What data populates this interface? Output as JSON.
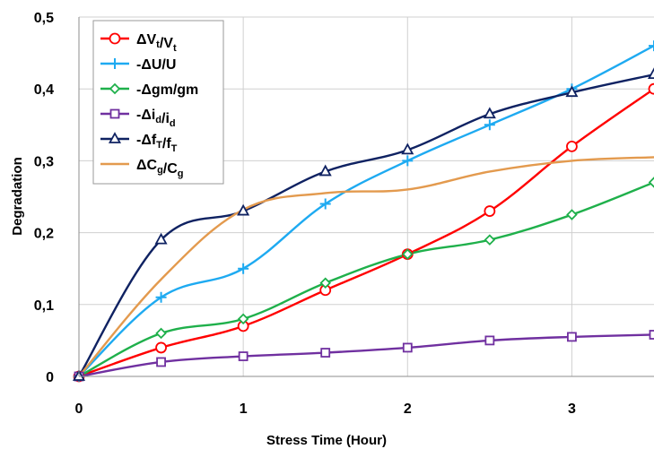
{
  "chart_data": {
    "type": "line",
    "xlabel": "Stress Time (Hour)",
    "ylabel": "Degradation",
    "xlim": [
      0,
      3.5
    ],
    "ylim": [
      0,
      0.5
    ],
    "x_ticks": [
      0,
      1,
      2,
      3
    ],
    "x_tick_labels": [
      "0",
      "1",
      "2",
      "3"
    ],
    "y_ticks": [
      0,
      0.1,
      0.2,
      0.3,
      0.4,
      0.5
    ],
    "y_tick_labels": [
      "0",
      "0,1",
      "0,2",
      "0,3",
      "0,4",
      "0,5"
    ],
    "grid": true,
    "legend_position": "top-left",
    "series": [
      {
        "name": "ΔVt/Vt",
        "legend_main": "ΔV",
        "legend_sub1": "t",
        "legend_mid": "/V",
        "legend_sub2": "t",
        "color": "#ff0000",
        "marker": "circle",
        "x": [
          0,
          0.5,
          1,
          1.5,
          2,
          2.5,
          3,
          3.5
        ],
        "y": [
          0,
          0.04,
          0.07,
          0.12,
          0.17,
          0.23,
          0.32,
          0.4
        ]
      },
      {
        "name": "-ΔU/U",
        "legend_main": "-ΔU/U",
        "legend_sub1": "",
        "legend_mid": "",
        "legend_sub2": "",
        "color": "#1eaaf1",
        "marker": "plus",
        "x": [
          0,
          0.5,
          1,
          1.5,
          2,
          2.5,
          3,
          3.5
        ],
        "y": [
          0,
          0.11,
          0.15,
          0.24,
          0.3,
          0.35,
          0.4,
          0.46
        ]
      },
      {
        "name": "-Δgm/gm",
        "legend_main": "-Δgm/gm",
        "legend_sub1": "",
        "legend_mid": "",
        "legend_sub2": "",
        "color": "#1fb04b",
        "marker": "diamond",
        "x": [
          0,
          0.5,
          1,
          1.5,
          2,
          2.5,
          3,
          3.5
        ],
        "y": [
          0,
          0.06,
          0.08,
          0.13,
          0.17,
          0.19,
          0.225,
          0.27
        ]
      },
      {
        "name": "-Δid/id",
        "legend_main": "-Δi",
        "legend_sub1": "d",
        "legend_mid": "/i",
        "legend_sub2": "d",
        "color": "#7030a0",
        "marker": "square",
        "x": [
          0,
          0.5,
          1,
          1.5,
          2,
          2.5,
          3,
          3.5
        ],
        "y": [
          0,
          0.02,
          0.028,
          0.033,
          0.04,
          0.05,
          0.055,
          0.058
        ]
      },
      {
        "name": "-ΔfT/fT",
        "legend_main": "-Δf",
        "legend_sub1": "T",
        "legend_mid": "/f",
        "legend_sub2": "T",
        "color": "#0f2262",
        "marker": "triangle",
        "x": [
          0,
          0.5,
          1,
          1.5,
          2,
          2.5,
          3,
          3.5
        ],
        "y": [
          0,
          0.19,
          0.23,
          0.285,
          0.315,
          0.365,
          0.395,
          0.42
        ]
      },
      {
        "name": "ΔCg/Cg",
        "legend_main": "ΔC",
        "legend_sub1": "g",
        "legend_mid": "/C",
        "legend_sub2": "g",
        "color": "#e39a4e",
        "marker": "none",
        "x": [
          0,
          0.5,
          1,
          1.5,
          2,
          2.5,
          3,
          3.5
        ],
        "y": [
          0,
          0.135,
          0.232,
          0.255,
          0.26,
          0.285,
          0.3,
          0.305
        ]
      }
    ]
  }
}
